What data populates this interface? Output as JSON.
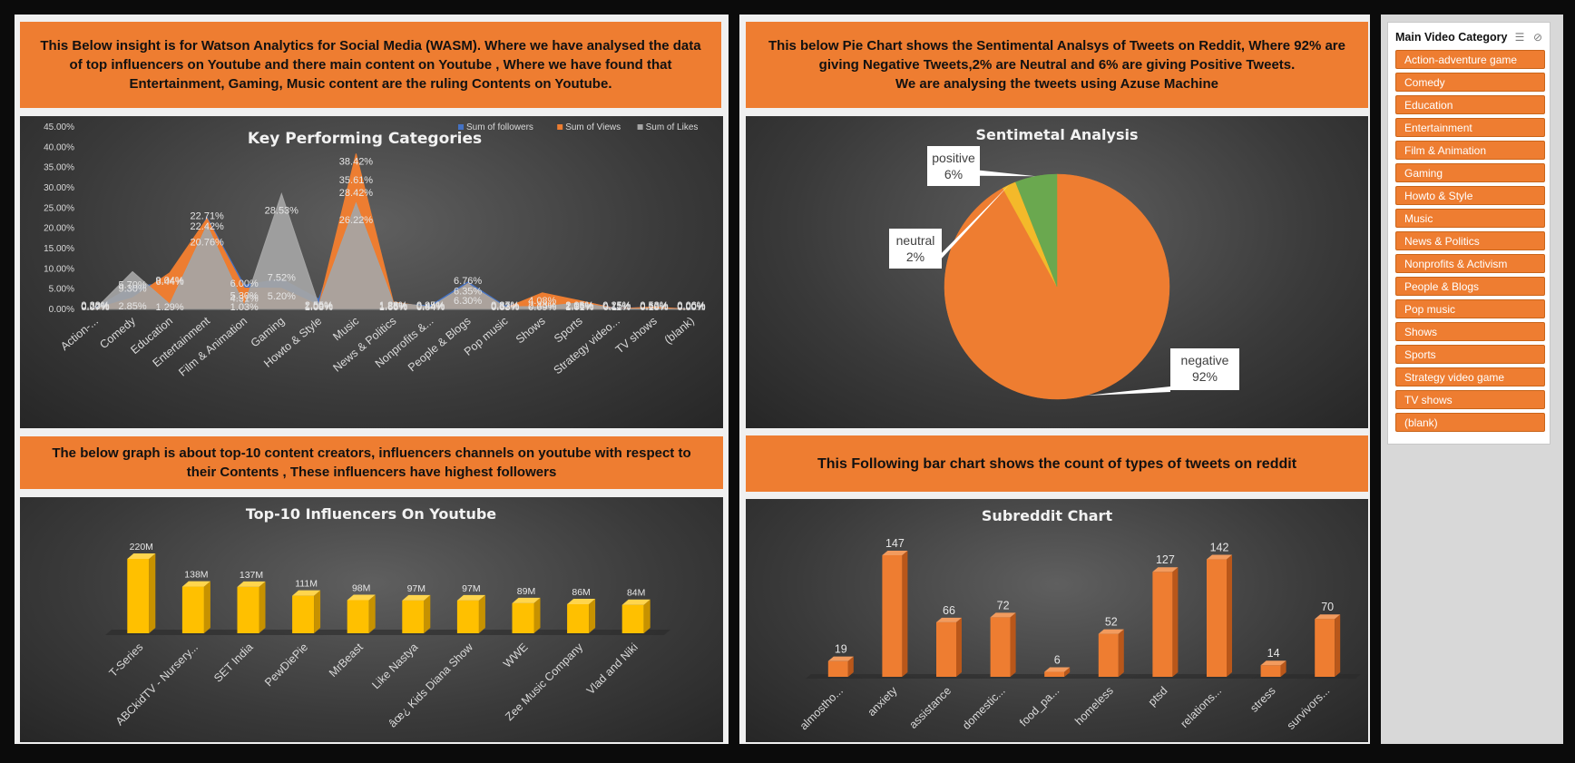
{
  "texts": {
    "wasm": [
      "This Below insight is for Watson Analytics for Social Media (WASM). Where we have analysed the data",
      "of top influencers on Youtube and there main content on Youtube , Where we have found that",
      "Entertainment, Gaming, Music content are the ruling Contents on Youtube."
    ],
    "pie": [
      "This below Pie Chart shows the Sentimental Analsys of Tweets on Reddit, Where 92% are",
      "giving Negative Tweets,2% are Neutral and 6% are giving Positive Tweets.",
      "We are analysing the tweets using Azuse Machine"
    ],
    "top10": [
      "The below graph is about top-10 content creators, influencers channels on youtube with respect to",
      "their Contents , These influencers have highest followers"
    ],
    "bar": [
      "This Following bar chart shows the count of types of tweets on reddit"
    ]
  },
  "slicer": {
    "title": "Main Video Category",
    "icons": [
      "multi-select-icon",
      "clear-filter-icon"
    ],
    "items": [
      "Action-adventure game",
      "Comedy",
      "Education",
      "Entertainment",
      "Film & Animation",
      "Gaming",
      "Howto & Style",
      "Music",
      "News & Politics",
      "Nonprofits & Activism",
      "People & Blogs",
      "Pop music",
      "Shows",
      "Sports",
      "Strategy video game",
      "TV shows",
      "(blank)"
    ]
  },
  "chart_data": [
    {
      "type": "area",
      "title": "Key Performing Categories",
      "categories": [
        "Action-...",
        "Comedy",
        "Education",
        "Entertainment",
        "Film & Animation",
        "Gaming",
        "Howto & Style",
        "Music",
        "News & Politics",
        "Nonprofits &...",
        "People & Blogs",
        "Pop music",
        "Shows",
        "Sports",
        "Strategy video...",
        "TV shows",
        "(blank)"
      ],
      "yticks": [
        "0.00%",
        "5.00%",
        "10.00%",
        "15.00%",
        "20.00%",
        "25.00%",
        "30.00%",
        "35.00%",
        "40.00%",
        "45.00%"
      ],
      "ylim": [
        0,
        45
      ],
      "legend": "top-right",
      "series": [
        {
          "name": "Sum of followers",
          "color": "#4472c4",
          "values": [
            0.38,
            5.7,
            6.44,
            22.71,
            6.0,
            7.52,
            2.55,
            28.42,
            1.28,
            0.95,
            6.76,
            0.87,
            2.33,
            2.05,
            0.25,
            0.53,
            0.06
          ],
          "labels": [
            "0.38%",
            "5.70%",
            "6.44%",
            "22.71%",
            "6.00%",
            "7.52%",
            "2.55%",
            "28.42%",
            "1.28%",
            "0.95%",
            "6.76%",
            "0.87%",
            "2.33%",
            "2.05%",
            "0.25%",
            "0.53%",
            "0.06%"
          ]
        },
        {
          "name": "Sum of Views",
          "color": "#ed7d31",
          "values": [
            0.2,
            2.85,
            9.04,
            22.42,
            5.3,
            5.2,
            1.0,
            38.42,
            1.86,
            0.44,
            6.35,
            0.33,
            4.08,
            2.16,
            0.15,
            0.6,
            0.0
          ],
          "labels": [
            "0.20%",
            "2.85%",
            "9.04%",
            "22.42%",
            "5.30%",
            "5.20%",
            "1.00%",
            "38.42%",
            "1.86%",
            "0.44%",
            "6.35%",
            "0.33%",
            "4.08%",
            "2.16%",
            "0.15%",
            "0.60%",
            "0.00%"
          ]
        },
        {
          "name": "Sum of Likes",
          "color": "#a5a5a5",
          "values": [
            0.07,
            9.3,
            1.29,
            20.76,
            1.03,
            28.53,
            1.08,
            26.22,
            1.66,
            0.64,
            6.3,
            0.63,
            0.69,
            1.61,
            0.11,
            0.18,
            0.0
          ],
          "labels": [
            "0.07%",
            "9.30%",
            "1.29%",
            "20.76%",
            "1.03%",
            "28.53%",
            "1.08%",
            "26.22%",
            "1.66%",
            "0.64%",
            "6.30%",
            "0.63%",
            "0.69%",
            "1.61%",
            "0.11%",
            "0.18%",
            "0.00%"
          ]
        }
      ],
      "extra_labels": [
        "35.61%",
        "4.31%"
      ]
    },
    {
      "type": "pie",
      "title": "Sentimetal Analysis",
      "slices": [
        {
          "name": "negative",
          "value": 92,
          "label": "92%",
          "color": "#ee7d31"
        },
        {
          "name": "neutral",
          "value": 2,
          "label": "2%",
          "color": "#f4b92a"
        },
        {
          "name": "positive",
          "value": 6,
          "label": "6%",
          "color": "#6aa84f"
        }
      ]
    },
    {
      "type": "bar",
      "title": "Top-10 Influencers On Youtube",
      "categories": [
        "T-Series",
        "ABCkidTV - Nursery...",
        "SET India",
        "PewDiePie",
        "MrBeast",
        "Like Nastya",
        "âœ¿ Kids Diana Show",
        "WWE",
        "Zee Music Company",
        "Vlad and Niki"
      ],
      "values": [
        220,
        138,
        137,
        111,
        98,
        97,
        97,
        89,
        86,
        84
      ],
      "labels": [
        "220M",
        "138M",
        "137M",
        "111M",
        "98M",
        "97M",
        "97M",
        "89M",
        "86M",
        "84M"
      ],
      "ylim": [
        0,
        220
      ],
      "color": "#ffc000"
    },
    {
      "type": "bar",
      "title": "Subreddit Chart",
      "categories": [
        "almostho...",
        "anxiety",
        "assistance",
        "domestic...",
        "food_pa...",
        "homeless",
        "ptsd",
        "relations...",
        "stress",
        "survivors..."
      ],
      "values": [
        19,
        147,
        66,
        72,
        6,
        52,
        127,
        142,
        14,
        70
      ],
      "ylim": [
        0,
        147
      ],
      "color": "#ee7d31"
    }
  ]
}
